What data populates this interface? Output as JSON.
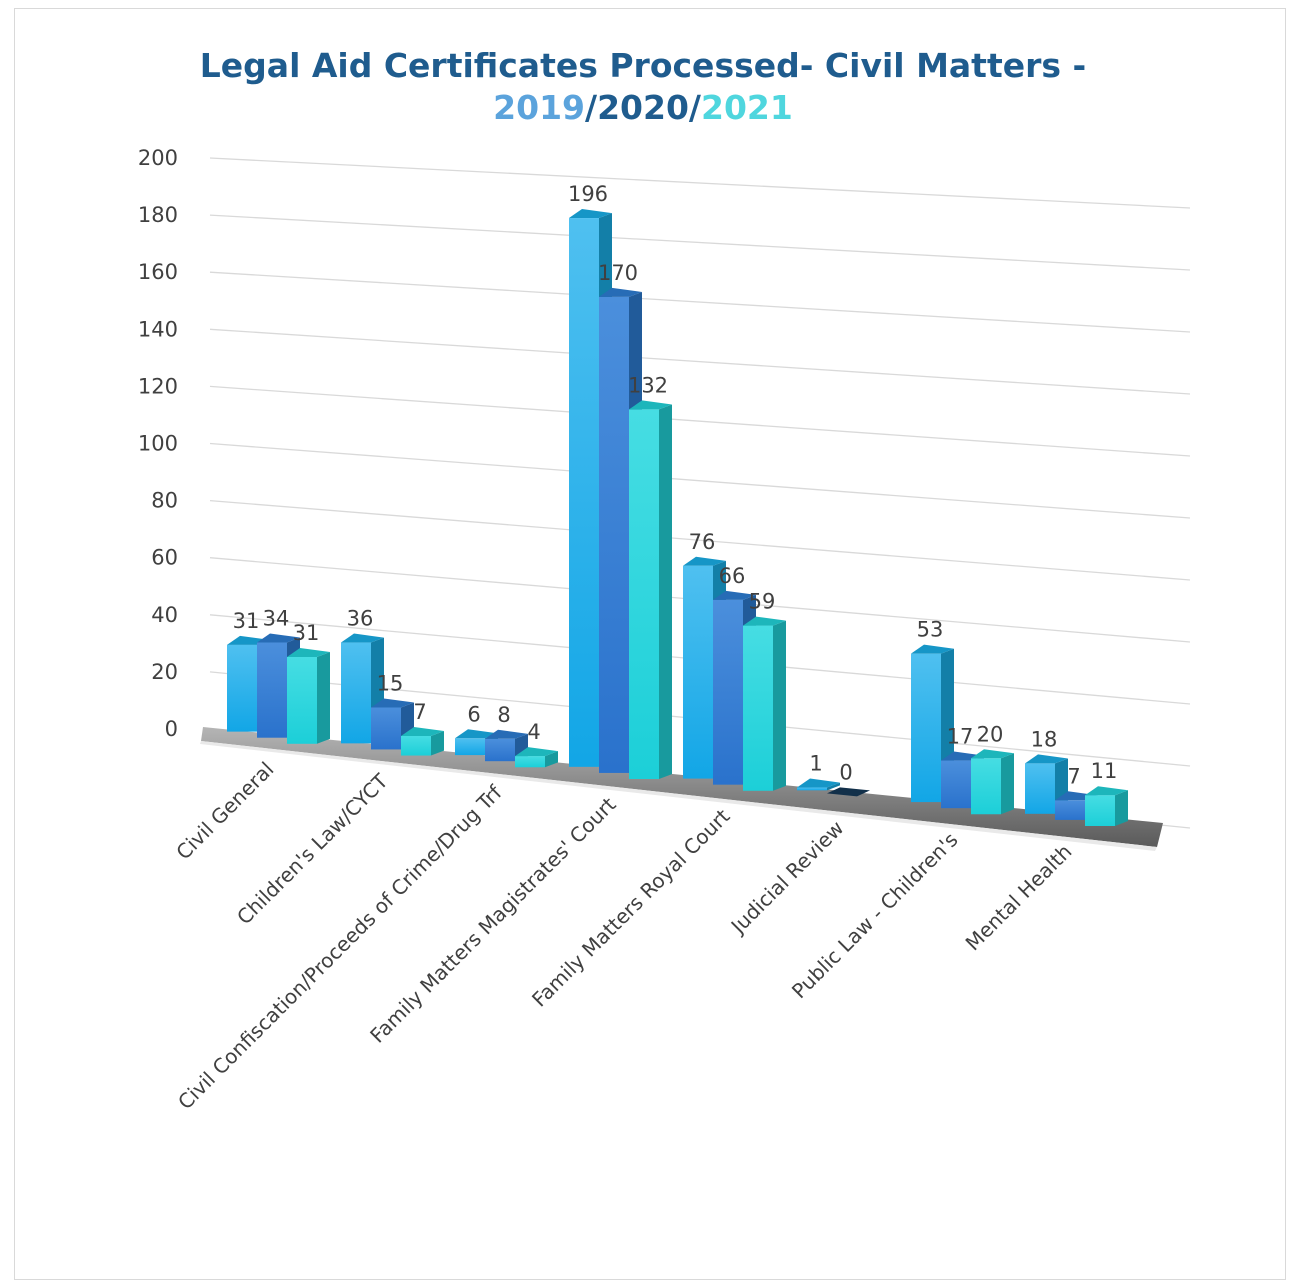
{
  "chart_data": {
    "type": "bar",
    "title_line1": "Legal Aid Certificates Processed- Civil Matters -",
    "title_line2_parts": [
      {
        "text": "2019",
        "color": "#5BA3DC"
      },
      {
        "text": "/",
        "color": "#1F5C8E"
      },
      {
        "text": "2020",
        "color": "#1F5C8E"
      },
      {
        "text": "/",
        "color": "#1F5C8E"
      },
      {
        "text": "2021",
        "color": "#4FD6DE"
      }
    ],
    "title_color": "#1F5C8E",
    "categories": [
      "Civil General",
      "Children's Law/CYCT",
      "Civil Confiscation/Proceeds of Crime/Drug Trf",
      "Family Matters Magistrates' Court",
      "Family Matters Royal Court",
      "Judicial Review",
      "Public Law - Children's",
      "Mental Health"
    ],
    "series": [
      {
        "values": [
          31,
          36,
          6,
          196,
          76,
          1,
          53,
          18
        ],
        "color": "#1AB0EA"
      },
      {
        "values": [
          34,
          15,
          8,
          170,
          66,
          0,
          17,
          7
        ],
        "color": "#2E7FD6"
      },
      {
        "values": [
          31,
          7,
          4,
          132,
          59,
          null,
          20,
          11
        ],
        "color": "#22D6DC"
      }
    ],
    "ylim": [
      0,
      200
    ],
    "yticks": [
      0,
      20,
      40,
      60,
      80,
      100,
      120,
      140,
      160,
      180,
      200
    ],
    "grid": true,
    "legend": "none",
    "style": "3d-column"
  }
}
